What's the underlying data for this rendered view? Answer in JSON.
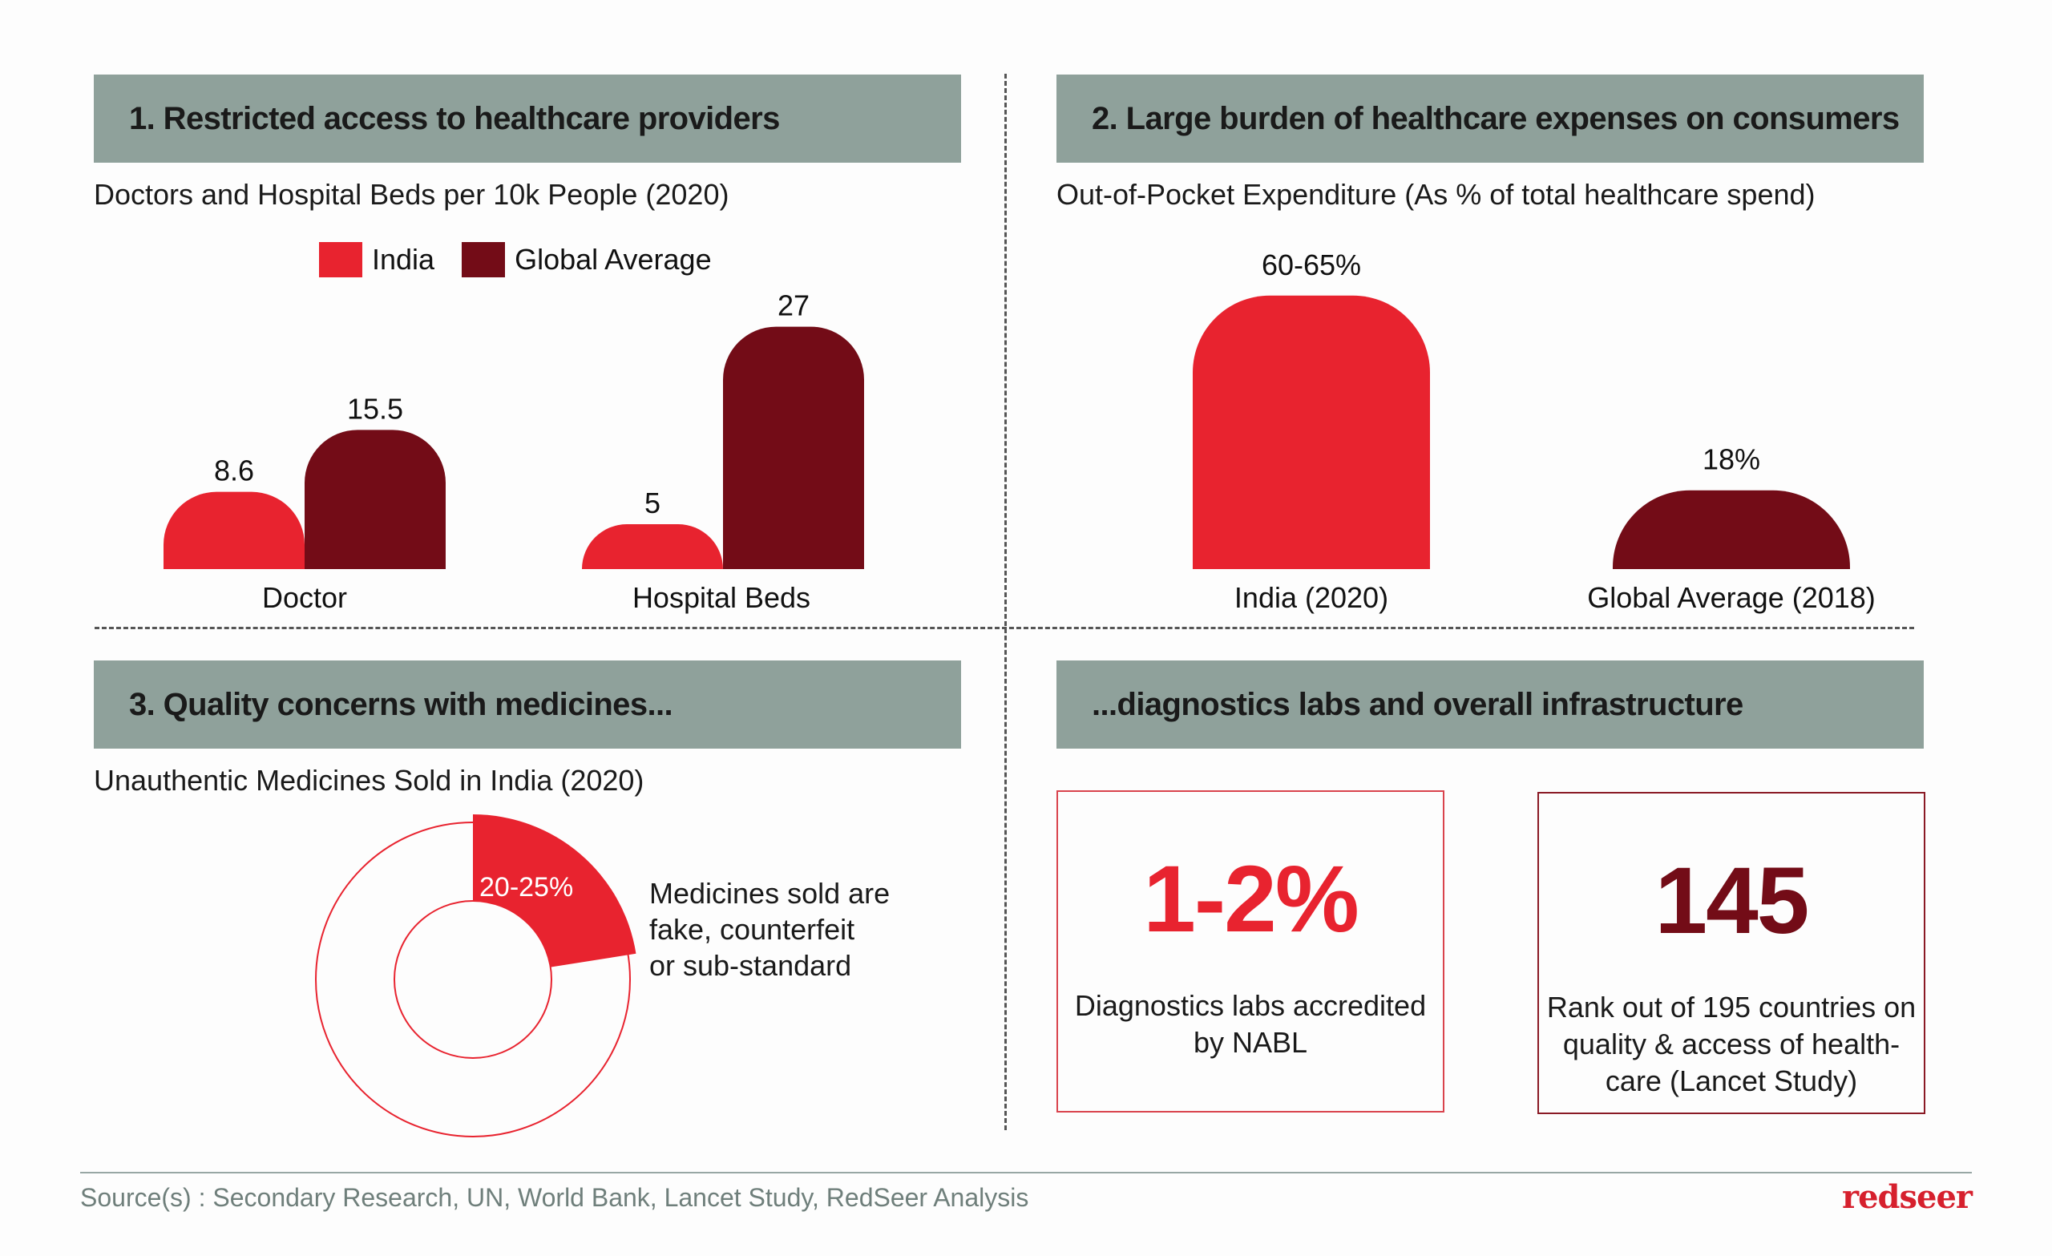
{
  "colors": {
    "india": "#e8232f",
    "global": "#730c17",
    "header": "#8fa19b"
  },
  "panels": {
    "p1": {
      "title": "1. Restricted access to healthcare providers",
      "subtitle": "Doctors and Hospital Beds per 10k People (2020)"
    },
    "p2": {
      "title": "2. Large burden of healthcare expenses on consumers",
      "subtitle": "Out-of-Pocket Expenditure (As % of total healthcare spend)"
    },
    "p3": {
      "title": "3. Quality concerns with medicines...",
      "subtitle": "Unauthentic Medicines Sold in India (2020)",
      "donut_label": "20-25%",
      "description": [
        "Medicines sold are",
        "fake, counterfeit",
        "or sub-standard"
      ]
    },
    "p4": {
      "title": "...diagnostics labs and overall infrastructure",
      "stat1": {
        "value": "1-2%",
        "desc": [
          "Diagnostics labs accredited",
          "by NABL"
        ]
      },
      "stat2": {
        "value": "145",
        "desc": [
          "Rank out of 195 countries on",
          "quality &  access of health-",
          "care (Lancet Study)"
        ]
      }
    }
  },
  "legend": {
    "india": "India",
    "global": "Global Average"
  },
  "chart_data": [
    {
      "type": "bar",
      "title": "Doctors and Hospital Beds per 10k People (2020)",
      "categories": [
        "Doctor",
        "Hospital Beds"
      ],
      "series": [
        {
          "name": "India",
          "values": [
            8.6,
            5
          ],
          "labels": [
            "8.6",
            "5"
          ]
        },
        {
          "name": "Global Average",
          "values": [
            15.5,
            27
          ],
          "labels": [
            "15.5",
            "27"
          ]
        }
      ]
    },
    {
      "type": "bar",
      "title": "Out-of-Pocket Expenditure (As % of total healthcare spend)",
      "categories": [
        "India (2020)",
        "Global Average (2018)"
      ],
      "values": [
        62.5,
        18
      ],
      "labels": [
        "60-65%",
        "18%"
      ]
    },
    {
      "type": "pie",
      "title": "Unauthentic Medicines Sold in India (2020)",
      "values": [
        22.5
      ],
      "labels": [
        "20-25%"
      ]
    }
  ],
  "footer": {
    "source": "Source(s) : Secondary Research, UN, World Bank, Lancet Study, RedSeer Analysis",
    "logo": "redseer"
  }
}
